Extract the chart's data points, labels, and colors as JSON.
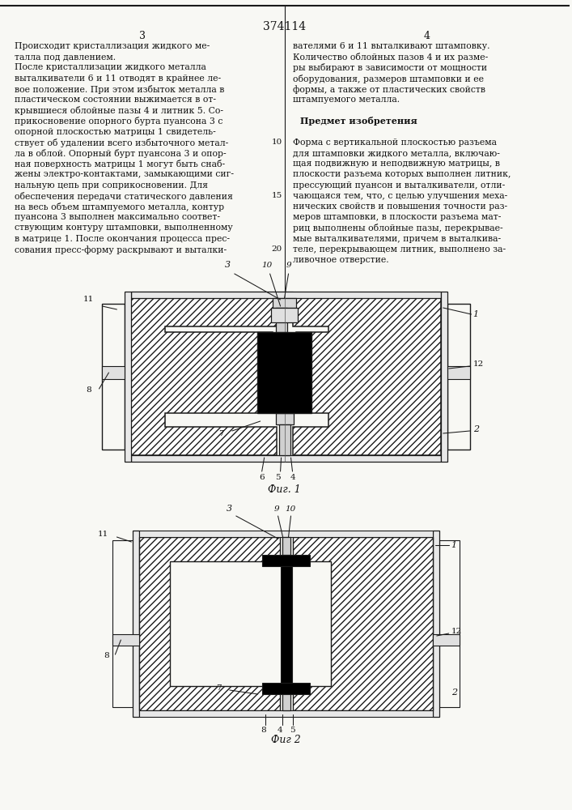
{
  "patent_number": "374114",
  "page_num_left": "3",
  "page_num_right": "4",
  "title_fig1": "Фиг. 1",
  "title_fig2": "Фиг 2",
  "text_col1_lines": [
    "Происходит кристаллизация жидкого ме-",
    "талла под давлением.",
    "После кристаллизации жидкого металла",
    "выталкиватели 6 и 11 отводят в крайнее ле-",
    "вое положение. При этом избыток металла в",
    "пластическом состоянии выжимается в от-",
    "крывшиеся облойные пазы 4 и литник 5. Со-",
    "прикосновение опорного бурта пуансона 3 с",
    "опорной плоскостью матрицы 1 свидетель-",
    "ствует об удалении всего избыточного метал-",
    "ла в облой. Опорный бурт пуансона 3 и опор-",
    "ная поверхность матрицы 1 могут быть снаб-",
    "жены электро-контактами, замыкающими сиг-",
    "нальную цепь при соприкосновении. Для",
    "обеспечения передачи статического давления",
    "на весь объем штампуемого металла, контур",
    "пуансона 3 выполнен максимально соответ-",
    "ствующим контуру штамповки, выполненному",
    "в матрице 1. После окончания процесса прес-",
    "сования пресс-форму раскрывают и выталки-"
  ],
  "text_col1_linenums": [
    "",
    "",
    "",
    "",
    "",
    "",
    "",
    "",
    "",
    "10",
    "",
    "",
    "",
    "",
    "15",
    "",
    "",
    "",
    "",
    "20"
  ],
  "text_col2_lines": [
    "вателями 6 и 11 выталкивают штамповку.",
    "Количество облойных пазов 4 и их разме-",
    "ры выбирают в зависимости от мощности",
    "оборудования, размеров штамповки и ее",
    "формы, а также от пластических свойств",
    "штампуемого металла.",
    "",
    "Предмет изобретения",
    "",
    "Форма с вертикальной плоскостью разъема",
    "для штамповки жидкого металла, включаю-",
    "щая подвижную и неподвижную матрицы, в",
    "плоскости разъема которых выполнен литник,",
    "прессующий пуансон и выталкиватели, отли-",
    "чающаяся тем, что, с целью улучшения меха-",
    "нических свойств и повышения точности раз-",
    "меров штамповки, в плоскости разъема мат-",
    "риц выполнены облойные пазы, перекрывае-",
    "мые выталкивателями, причем в выталкива-",
    "теле, перекрывающем литник, выполнено за-",
    "ливочное отверстие."
  ],
  "background_color": "#f8f8f4",
  "line_color": "#1a1a1a",
  "text_color": "#111111"
}
